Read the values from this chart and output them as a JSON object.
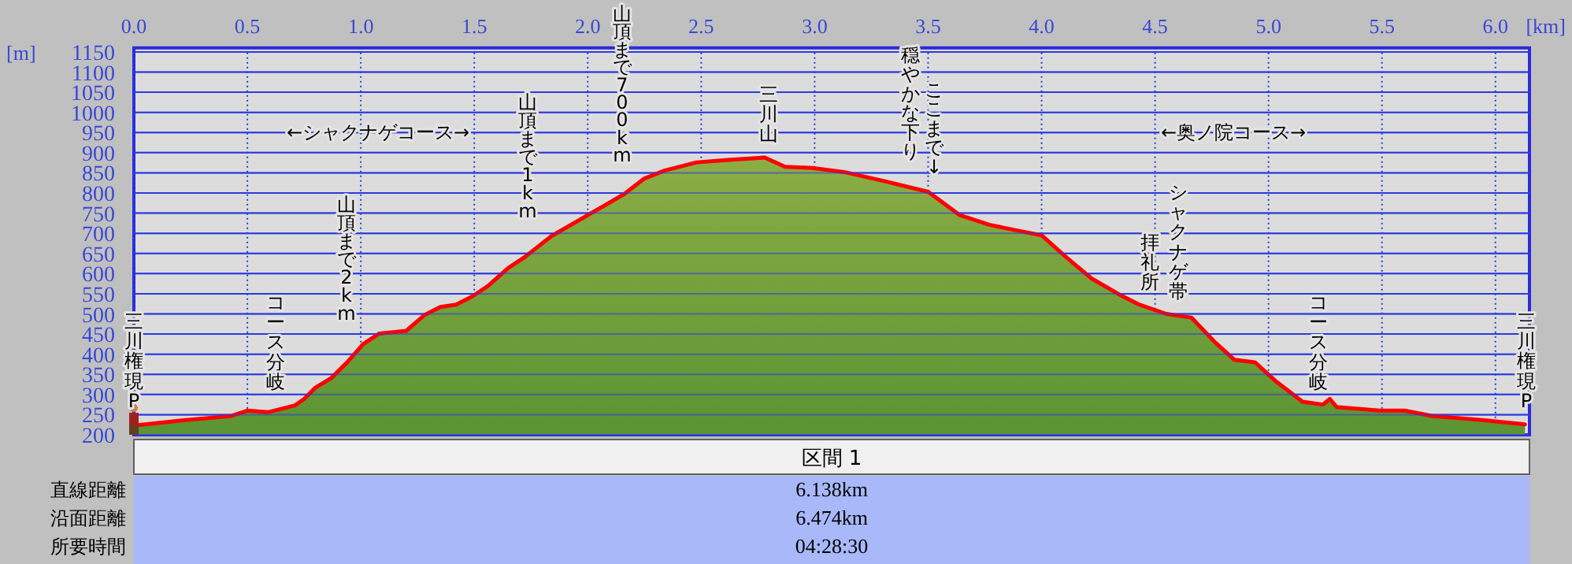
{
  "chart_data": {
    "type": "area",
    "xlabel": "[km]",
    "ylabel": "[m]",
    "xlim": [
      0,
      6.15
    ],
    "ylim": [
      200,
      1160
    ],
    "xticks": [
      {
        "value": 0,
        "label": "0.0"
      },
      {
        "value": 0.5,
        "label": "0.5"
      },
      {
        "value": 1,
        "label": "1.0"
      },
      {
        "value": 1.5,
        "label": "1.5"
      },
      {
        "value": 2,
        "label": "2.0"
      },
      {
        "value": 2.5,
        "label": "2.5"
      },
      {
        "value": 3,
        "label": "3.0"
      },
      {
        "value": 3.5,
        "label": "3.5"
      },
      {
        "value": 4,
        "label": "4.0"
      },
      {
        "value": 4.5,
        "label": "4.5"
      },
      {
        "value": 5,
        "label": "5.0"
      },
      {
        "value": 5.5,
        "label": "5.5"
      },
      {
        "value": 6,
        "label": "6.0"
      }
    ],
    "yticks": [
      200,
      250,
      300,
      350,
      400,
      450,
      500,
      550,
      600,
      650,
      700,
      750,
      800,
      850,
      900,
      950,
      1000,
      1050,
      1100,
      1150
    ],
    "grid": true,
    "marker": "none",
    "line_style": "solid",
    "series": [
      {
        "color": "#ff0000",
        "x": [
          0,
          0.22,
          0.43,
          0.5,
          0.59,
          0.71,
          0.75,
          0.8,
          0.87,
          0.94,
          1.01,
          1.08,
          1.15,
          1.2,
          1.28,
          1.35,
          1.42,
          1.49,
          1.56,
          1.65,
          1.72,
          1.84,
          2.0,
          2.16,
          2.25,
          2.34,
          2.48,
          2.62,
          2.78,
          2.87,
          2.99,
          3.13,
          3.31,
          3.5,
          3.64,
          3.77,
          3.91,
          4.0,
          4.11,
          4.22,
          4.34,
          4.43,
          4.55,
          4.66,
          4.76,
          4.85,
          4.94,
          5.03,
          5.15,
          5.24,
          5.27,
          5.3,
          5.49,
          5.6,
          5.72,
          5.95,
          6.13
        ],
        "values": [
          223,
          236,
          247,
          260,
          256,
          273,
          289,
          317,
          341,
          380,
          425,
          451,
          455,
          458,
          497,
          517,
          523,
          543,
          569,
          614,
          640,
          693,
          745,
          797,
          836,
          856,
          876,
          882,
          888,
          865,
          862,
          852,
          829,
          803,
          745,
          721,
          705,
          695,
          640,
          588,
          549,
          523,
          500,
          491,
          432,
          386,
          380,
          334,
          282,
          275,
          289,
          269,
          260,
          260,
          247,
          236,
          226
        ]
      }
    ],
    "annotations": [
      "三川権現P",
      "コース分岐",
      "山頂まで2km",
      "←シャクナゲコース→",
      "山頂まで1km",
      "山頂まで700km",
      "三川山",
      "穏やかな下り",
      "ここまで↓",
      "←奥ノ院コース→",
      "拝礼所",
      "シャクナゲ帯",
      "コース分岐",
      "三川権現P",
      "区間 1",
      "直線距離",
      "6.138km",
      "沿面距離",
      "6.474km",
      "所要時間",
      "04:28:30"
    ]
  }
}
